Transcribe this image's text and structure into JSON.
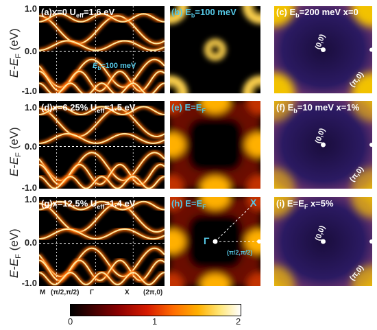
{
  "axes": {
    "y_label": "E-E",
    "y_label_sub": "F",
    "y_label_unit": " (eV)",
    "y_ticks": [
      "1.0",
      "0.0",
      "-1.0"
    ],
    "x_ticks": [
      "M",
      "(π/2,π/2)",
      "Γ",
      "X",
      "(2π,0)"
    ]
  },
  "colorbar": {
    "ticks": [
      "0",
      "1",
      "2"
    ]
  },
  "panels": {
    "a": {
      "label": "(a)x=0  U",
      "label_sub": "eff",
      "label_end": "=1.6 eV",
      "note": "E",
      "note_sub": "b",
      "note_end": "=100 meV"
    },
    "b": {
      "label": "(b) E",
      "label_sub": "b",
      "label_end": "=100 meV"
    },
    "c": {
      "label": "(c) E",
      "label_sub": "b",
      "label_end": "=200 meV x=0",
      "center": "(0,0)",
      "corner": "(π,0)"
    },
    "d": {
      "label": "(d)x=6.25%  U",
      "label_sub": "eff",
      "label_end": "=1.5 eV"
    },
    "e": {
      "label": "(e) E=E",
      "label_sub": "F"
    },
    "f": {
      "label": "(f) E",
      "label_sub": "b",
      "label_end": "=10 meV x=1%",
      "center": "(0,0)",
      "corner": "(π,0)"
    },
    "g": {
      "label": "(g)x=12.5%  U",
      "label_sub": "eff",
      "label_end": "=1.4 eV"
    },
    "h": {
      "label": "(h) E=E",
      "label_sub": "F",
      "gamma": "Γ",
      "xpt": "X",
      "kpt": "(π/2,π/2)"
    },
    "i": {
      "label": "(i) E=E",
      "label_sub": "F",
      "label_end": " x=5%",
      "center": "(0,0)",
      "corner": "(π,0)"
    }
  },
  "colors": {
    "band": "#ffe8a0",
    "band_glow": "#ff6a00",
    "fermi_line": "#ffffff",
    "cyan": "#55c8e6",
    "map_bg": "#2a1a5a",
    "map_edge": "#f2c200"
  }
}
